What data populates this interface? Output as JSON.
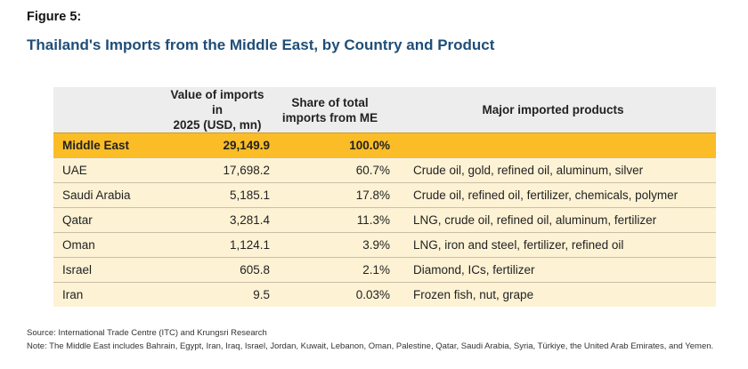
{
  "figure_label": "Figure 5:",
  "title": "Thailand's Imports from the Middle East, by Country and Product",
  "colors": {
    "title": "#1f4e79",
    "header_bg": "#ededed",
    "total_row_bg": "#fbbd27",
    "row_bg": "#fdf2d4"
  },
  "table": {
    "headers": [
      "",
      "Value of imports in 2025 (USD, mn)",
      "Share of total imports from ME",
      "Major imported products"
    ],
    "header_lines": {
      "value": [
        "Value of imports in",
        "2025 (USD, mn)"
      ],
      "share": [
        "Share of total",
        "imports from ME"
      ]
    },
    "rows": [
      {
        "country": "Middle East",
        "value": "29,149.9",
        "share": "100.0%",
        "products": ""
      },
      {
        "country": "UAE",
        "value": "17,698.2",
        "share": "60.7%",
        "products": "Crude oil, gold, refined oil, aluminum, silver"
      },
      {
        "country": "Saudi Arabia",
        "value": "5,185.1",
        "share": "17.8%",
        "products": "Crude oil, refined oil, fertilizer, chemicals, polymer"
      },
      {
        "country": "Qatar",
        "value": "3,281.4",
        "share": "11.3%",
        "products": "LNG, crude oil, refined oil, aluminum, fertilizer"
      },
      {
        "country": "Oman",
        "value": "1,124.1",
        "share": "3.9%",
        "products": "LNG, iron and steel, fertilizer, refined oil"
      },
      {
        "country": "Israel",
        "value": "605.8",
        "share": "2.1%",
        "products": "Diamond, ICs, fertilizer"
      },
      {
        "country": "Iran",
        "value": "9.5",
        "share": "0.03%",
        "products": "Frozen fish, nut, grape"
      }
    ]
  },
  "source": "Source: International Trade Centre (ITC) and Krungsri Research",
  "note": "Note: The Middle East includes Bahrain, Egypt, Iran, Iraq, Israel, Jordan, Kuwait, Lebanon, Oman, Palestine, Qatar, Saudi Arabia, Syria, Türkiye, the United Arab Emirates, and Yemen."
}
